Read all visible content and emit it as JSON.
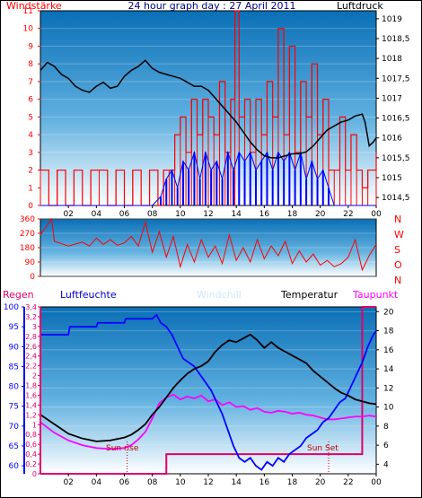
{
  "title": "24 hour graph day : 27 April 2011",
  "colors": {
    "sky_top": "#0a6fb6",
    "sky_bottom": "#ffffff",
    "red": "#ff0000",
    "blue": "#0000ff",
    "black": "#000000",
    "magenta": "#ff00ff",
    "pink": "#e0006a",
    "darkred": "#c00000",
    "navy": "#000080"
  },
  "hour_ticks": [
    "02",
    "04",
    "06",
    "08",
    "10",
    "12",
    "14",
    "16",
    "18",
    "20",
    "22",
    "00"
  ],
  "chart_data": [
    {
      "type": "line",
      "name": "wind-pressure",
      "left_label": "Windstärke",
      "right_label": "Luftdruck",
      "x_unit": "hour",
      "xlim": [
        0,
        24
      ],
      "wind_ylim": [
        0,
        11
      ],
      "wind_ticks": [
        "0",
        "1",
        "2",
        "3",
        "4",
        "5",
        "6",
        "7",
        "8",
        "9",
        "10",
        "11"
      ],
      "pressure_ylim": [
        1014.3,
        1019.2
      ],
      "pressure_ticks": [
        "1014,5",
        "1015",
        "1015,5",
        "1016",
        "1016,5",
        "1017",
        "1017,5",
        "1018",
        "1018,5",
        "1019"
      ],
      "series": [
        {
          "name": "wind_gust",
          "color": "#ff0000",
          "x": [
            0.0,
            0.6,
            1.2,
            1.8,
            2.4,
            3.0,
            3.6,
            4.2,
            4.8,
            5.4,
            6.0,
            6.6,
            7.2,
            7.8,
            8.4,
            8.8,
            9.2,
            9.6,
            10.0,
            10.4,
            10.8,
            11.2,
            11.6,
            12.0,
            12.4,
            12.8,
            13.2,
            13.6,
            13.9,
            14.2,
            14.6,
            15.0,
            15.4,
            15.8,
            16.2,
            16.6,
            17.0,
            17.4,
            17.8,
            18.2,
            18.6,
            19.0,
            19.4,
            19.8,
            20.2,
            20.6,
            21.0,
            21.4,
            21.8,
            22.2,
            22.6,
            23.0,
            23.4,
            24.0
          ],
          "y": [
            2,
            0,
            2,
            0,
            2,
            0,
            2,
            2,
            0,
            2,
            0,
            2,
            0,
            2,
            0,
            2,
            2,
            4,
            5,
            3,
            6,
            4,
            6,
            5,
            4,
            7,
            3,
            6,
            11,
            5,
            6,
            3,
            6,
            4,
            7,
            5,
            10,
            4,
            9,
            3,
            7,
            5,
            8,
            4,
            6,
            2,
            2,
            5,
            2,
            4,
            2,
            1,
            2,
            3
          ]
        },
        {
          "name": "wind_mean",
          "color": "#0000ff",
          "x": [
            0.0,
            2.0,
            4.0,
            6.0,
            8.0,
            8.6,
            9.0,
            9.4,
            9.8,
            10.2,
            10.6,
            11.0,
            11.4,
            11.8,
            12.2,
            12.6,
            13.0,
            13.4,
            13.8,
            14.2,
            14.6,
            15.0,
            15.4,
            15.8,
            16.2,
            16.6,
            17.0,
            17.4,
            17.8,
            18.2,
            18.6,
            19.0,
            19.4,
            19.8,
            20.2,
            20.6,
            21.0,
            22.0,
            23.0,
            24.0
          ],
          "y": [
            0,
            0,
            0,
            0,
            0,
            0.5,
            1.5,
            2,
            1,
            2.5,
            2,
            3,
            1.5,
            3,
            2,
            2.5,
            1.5,
            3,
            2,
            3,
            2.5,
            3,
            2,
            2.5,
            3,
            2,
            3,
            2.5,
            3,
            2,
            3,
            1.5,
            2.5,
            1.5,
            2,
            1,
            0,
            0,
            0,
            0
          ]
        },
        {
          "name": "pressure",
          "color": "#000000",
          "x": [
            0.0,
            0.5,
            1.0,
            1.5,
            2.0,
            2.5,
            3.0,
            3.5,
            4.0,
            4.5,
            5.0,
            5.5,
            6.0,
            6.5,
            7.0,
            7.5,
            8.0,
            8.5,
            9.0,
            9.5,
            10.0,
            10.5,
            11.0,
            11.5,
            12.0,
            12.5,
            13.0,
            13.5,
            14.0,
            14.5,
            15.0,
            15.5,
            16.0,
            16.5,
            17.0,
            17.5,
            18.0,
            18.5,
            19.0,
            19.5,
            20.0,
            20.5,
            21.0,
            21.5,
            22.0,
            22.5,
            23.0,
            23.2,
            23.5,
            23.8,
            24.0
          ],
          "y": [
            1017.7,
            1017.9,
            1017.8,
            1017.6,
            1017.5,
            1017.3,
            1017.2,
            1017.15,
            1017.3,
            1017.4,
            1017.25,
            1017.3,
            1017.55,
            1017.7,
            1017.8,
            1017.95,
            1017.75,
            1017.65,
            1017.6,
            1017.55,
            1017.5,
            1017.4,
            1017.3,
            1017.3,
            1017.2,
            1017.0,
            1016.8,
            1016.6,
            1016.4,
            1016.15,
            1015.9,
            1015.7,
            1015.55,
            1015.5,
            1015.5,
            1015.55,
            1015.6,
            1015.6,
            1015.65,
            1015.8,
            1016.0,
            1016.2,
            1016.3,
            1016.4,
            1016.45,
            1016.55,
            1016.6,
            1016.4,
            1015.8,
            1015.9,
            1016.0
          ]
        }
      ]
    },
    {
      "type": "line",
      "name": "wind-direction",
      "right_labels": [
        "N",
        "W",
        "S",
        "O",
        "N"
      ],
      "xlim": [
        0,
        24
      ],
      "ylim": [
        0,
        360
      ],
      "ticks": [
        "0",
        "90",
        "180",
        "270",
        "360"
      ],
      "series": [
        {
          "name": "direction",
          "color": "#ff0000",
          "x": [
            0.0,
            0.8,
            1.0,
            2.0,
            3.0,
            3.5,
            4.0,
            4.5,
            5.0,
            5.5,
            6.0,
            6.5,
            7.0,
            7.5,
            8.0,
            8.5,
            9.0,
            9.5,
            10.0,
            10.5,
            11.0,
            11.5,
            12.0,
            12.5,
            13.0,
            13.5,
            14.0,
            14.5,
            15.0,
            15.5,
            16.0,
            16.5,
            17.0,
            17.5,
            18.0,
            18.5,
            19.0,
            19.5,
            20.0,
            20.5,
            21.0,
            21.5,
            22.0,
            22.5,
            23.0,
            23.5,
            24.0
          ],
          "y": [
            260,
            360,
            220,
            190,
            215,
            190,
            240,
            200,
            230,
            195,
            210,
            250,
            190,
            340,
            150,
            280,
            120,
            250,
            60,
            200,
            90,
            230,
            120,
            190,
            80,
            260,
            100,
            180,
            90,
            230,
            110,
            190,
            130,
            220,
            80,
            160,
            90,
            140,
            70,
            100,
            60,
            80,
            120,
            230,
            40,
            130,
            200
          ]
        }
      ]
    },
    {
      "type": "line",
      "name": "humidity-temperature",
      "left_labels": [
        "Regen",
        "Luftfeuchte"
      ],
      "top_labels": [
        "Windchill",
        "Temperatur",
        "Taupunkt"
      ],
      "annotations": [
        "Sun rise",
        "Sun Set"
      ],
      "sunrise_hour": 6.2,
      "sunset_hour": 20.6,
      "xlim": [
        0,
        24
      ],
      "rain_ylim": [
        0,
        3.4
      ],
      "rain_ticks": [
        "0",
        "0,2",
        "0,4",
        "0,6",
        "0,8",
        "1",
        "1,2",
        "1,4",
        "1,6",
        "1,8",
        "2",
        "2,2",
        "2,4",
        "2,6",
        "2,8",
        "3",
        "3,2",
        "3,4"
      ],
      "humidity_ylim": [
        58,
        100
      ],
      "humidity_ticks": [
        "60",
        "65",
        "70",
        "75",
        "80",
        "85",
        "90",
        "95",
        "100"
      ],
      "temperature_ylim": [
        3,
        20.5
      ],
      "temperature_ticks": [
        "4",
        "6",
        "8",
        "10",
        "12",
        "14",
        "16",
        "18",
        "20"
      ],
      "series": [
        {
          "name": "Luftfeuchte",
          "color": "#0000ff",
          "x": [
            0.0,
            2.0,
            2.1,
            4.0,
            4.1,
            6.0,
            6.1,
            8.0,
            8.3,
            8.6,
            9.0,
            9.4,
            9.8,
            10.2,
            10.6,
            11.0,
            11.4,
            11.8,
            12.2,
            12.6,
            13.0,
            13.4,
            13.8,
            14.2,
            14.6,
            15.0,
            15.4,
            15.8,
            16.2,
            16.6,
            17.0,
            17.4,
            17.8,
            18.2,
            18.6,
            19.0,
            19.4,
            19.8,
            20.2,
            20.6,
            21.0,
            21.4,
            21.8,
            22.2,
            22.6,
            23.0,
            23.4,
            23.8,
            24.0
          ],
          "y": [
            93,
            93,
            95,
            95,
            96,
            96,
            97,
            97,
            98,
            96,
            95,
            93,
            90,
            87,
            86,
            85,
            83,
            81,
            79,
            76,
            73,
            69,
            65,
            62,
            61,
            62,
            60,
            59,
            61,
            60,
            62,
            61,
            63,
            64,
            65,
            67,
            68,
            69,
            71,
            72,
            74,
            76,
            77,
            80,
            83,
            86,
            90,
            93,
            94
          ]
        },
        {
          "name": "Temperatur",
          "color": "#000000",
          "x": [
            0.0,
            1.0,
            2.0,
            3.0,
            4.0,
            5.0,
            6.0,
            6.5,
            7.0,
            7.5,
            8.0,
            8.5,
            9.0,
            9.5,
            10.0,
            10.5,
            11.0,
            11.5,
            12.0,
            12.5,
            13.0,
            13.5,
            14.0,
            14.5,
            15.0,
            15.5,
            16.0,
            16.5,
            17.0,
            17.5,
            18.0,
            18.5,
            19.0,
            19.5,
            20.0,
            20.5,
            21.0,
            21.5,
            22.0,
            22.5,
            23.0,
            23.5,
            24.0
          ],
          "y": [
            9.2,
            8.2,
            7.2,
            6.7,
            6.4,
            6.5,
            6.8,
            7.1,
            7.6,
            8.2,
            9.2,
            10.0,
            11.0,
            12.0,
            12.8,
            13.5,
            14.0,
            14.3,
            14.8,
            15.8,
            16.5,
            17.0,
            16.8,
            17.2,
            17.6,
            17.0,
            16.2,
            16.8,
            16.2,
            15.8,
            15.4,
            15.0,
            14.6,
            13.8,
            13.2,
            12.6,
            12.0,
            11.5,
            11.2,
            10.8,
            10.6,
            10.4,
            10.3
          ]
        },
        {
          "name": "Taupunkt",
          "color": "#ff00ff",
          "x": [
            0.0,
            1.0,
            2.0,
            3.0,
            4.0,
            5.0,
            6.0,
            6.5,
            7.0,
            7.5,
            8.0,
            8.5,
            9.0,
            9.5,
            10.0,
            10.5,
            11.0,
            11.5,
            12.0,
            12.5,
            13.0,
            13.5,
            14.0,
            14.5,
            15.0,
            15.5,
            16.0,
            16.5,
            17.0,
            17.5,
            18.0,
            18.5,
            19.0,
            19.5,
            20.0,
            20.5,
            21.0,
            21.5,
            22.0,
            22.5,
            23.0,
            23.5,
            24.0
          ],
          "y": [
            8.4,
            7.3,
            6.5,
            6.0,
            5.7,
            5.6,
            5.7,
            6.0,
            6.6,
            7.4,
            8.8,
            10.4,
            11.0,
            11.3,
            10.8,
            11.1,
            10.9,
            11.2,
            10.6,
            10.8,
            10.2,
            10.5,
            10.0,
            10.1,
            9.7,
            9.9,
            9.5,
            9.4,
            9.6,
            9.5,
            9.3,
            9.4,
            9.2,
            9.1,
            8.9,
            8.7,
            8.7,
            8.8,
            8.9,
            9.0,
            9.0,
            9.1,
            9.0
          ]
        },
        {
          "name": "Regen",
          "color": "#e0006a",
          "x": [
            0.0,
            9.0,
            9.0,
            23.0,
            23.0,
            24.0
          ],
          "y": [
            0,
            0,
            0.4,
            0.4,
            3.4,
            3.4
          ]
        }
      ]
    }
  ]
}
